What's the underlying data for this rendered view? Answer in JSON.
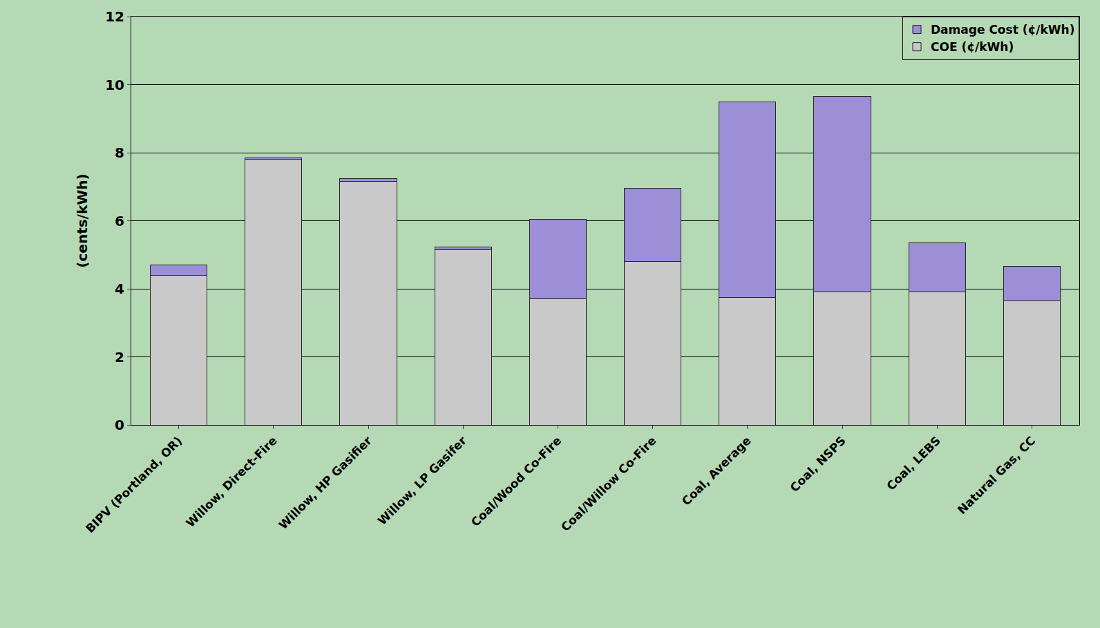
{
  "chart_data": {
    "type": "bar",
    "stacked": true,
    "y_label": "(cents/kWh)",
    "categories": [
      "BIPV (Portland, OR)",
      "Willow, Direct-Fire",
      "Willow, HP Gasifier",
      "Willow, LP Gasifer",
      "Coal/Wood Co-Fire",
      "Coal/Willow Co-Fire",
      "Coal, Average",
      "Coal, NSPS",
      "Coal, LEBS",
      "Natural Gas, CC"
    ],
    "series": [
      {
        "name": "COE (¢/kWh)",
        "color": "#c9c9c9",
        "values": [
          4.4,
          7.8,
          7.15,
          5.15,
          3.7,
          4.8,
          3.75,
          3.9,
          3.9,
          3.65
        ]
      },
      {
        "name": "Damage Cost (¢/kWh)",
        "color": "#9c8fd8",
        "values": [
          0.3,
          0.05,
          0.08,
          0.07,
          2.35,
          2.15,
          5.75,
          5.75,
          1.45,
          1.0
        ]
      }
    ],
    "ylim": [
      0,
      12
    ],
    "yticks": [
      0,
      2,
      4,
      6,
      8,
      10,
      12
    ],
    "grid": true,
    "legend": "top right"
  }
}
